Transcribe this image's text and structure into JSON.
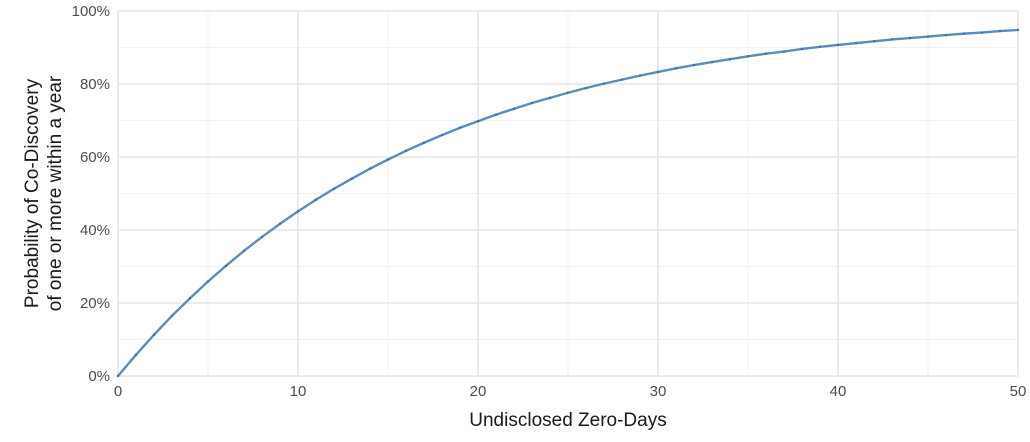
{
  "chart_data": {
    "type": "line",
    "title": "",
    "xlabel": "Undisclosed Zero-Days",
    "ylabel_lines": [
      "Probability of Co-Discovery",
      "of one or more within a year"
    ],
    "xlim": [
      0,
      50
    ],
    "ylim": [
      0,
      1
    ],
    "x_ticks": [
      0,
      10,
      20,
      30,
      40,
      50
    ],
    "x_tick_labels": [
      "0",
      "10",
      "20",
      "30",
      "40",
      "50"
    ],
    "y_ticks": [
      0,
      0.2,
      0.4,
      0.6,
      0.8,
      1.0
    ],
    "y_tick_labels": [
      "0%",
      "20%",
      "40%",
      "60%",
      "80%",
      "100%"
    ],
    "grid": true,
    "line_color": "#5b8db8",
    "series": [
      {
        "x": [
          0,
          1,
          2,
          3,
          4,
          5,
          6,
          7,
          8,
          9,
          10,
          11,
          12,
          13,
          14,
          15,
          16,
          17,
          18,
          19,
          20,
          21,
          22,
          23,
          24,
          25,
          26,
          27,
          28,
          29,
          30,
          31,
          32,
          33,
          34,
          35,
          36,
          37,
          38,
          39,
          40,
          41,
          42,
          43,
          44,
          45,
          46,
          47,
          48,
          49,
          50
        ],
        "y": [
          0,
          0.058,
          0.113,
          0.165,
          0.213,
          0.259,
          0.302,
          0.343,
          0.381,
          0.417,
          0.451,
          0.483,
          0.513,
          0.541,
          0.568,
          0.593,
          0.617,
          0.639,
          0.66,
          0.68,
          0.698,
          0.716,
          0.732,
          0.748,
          0.762,
          0.776,
          0.789,
          0.801,
          0.812,
          0.823,
          0.833,
          0.843,
          0.852,
          0.86,
          0.868,
          0.876,
          0.883,
          0.889,
          0.896,
          0.902,
          0.907,
          0.912,
          0.917,
          0.922,
          0.926,
          0.93,
          0.934,
          0.938,
          0.941,
          0.945,
          0.948
        ]
      }
    ]
  }
}
